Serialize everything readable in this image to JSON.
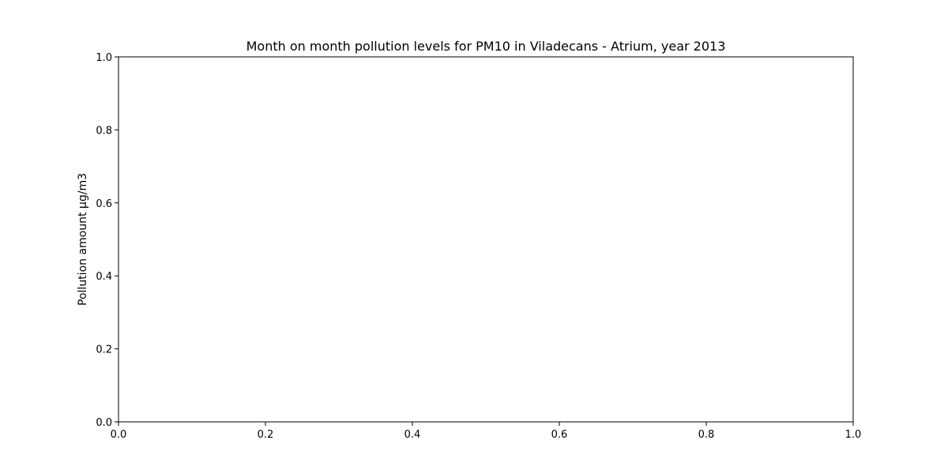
{
  "chart_data": {
    "type": "line",
    "title": "Month on month pollution levels for PM10 in Viladecans - Atrium, year 2013",
    "xlabel": "",
    "ylabel": "Pollution amount µg/m3",
    "xlim": [
      0.0,
      1.0
    ],
    "ylim": [
      0.0,
      1.0
    ],
    "x_ticks": [
      0.0,
      0.2,
      0.4,
      0.6,
      0.8,
      1.0
    ],
    "y_ticks": [
      0.0,
      0.2,
      0.4,
      0.6,
      0.8,
      1.0
    ],
    "x_tick_labels": [
      "0.0",
      "0.2",
      "0.4",
      "0.6",
      "0.8",
      "1.0"
    ],
    "y_tick_labels": [
      "0.0",
      "0.2",
      "0.4",
      "0.6",
      "0.8",
      "1.0"
    ],
    "grid": false,
    "series": []
  }
}
